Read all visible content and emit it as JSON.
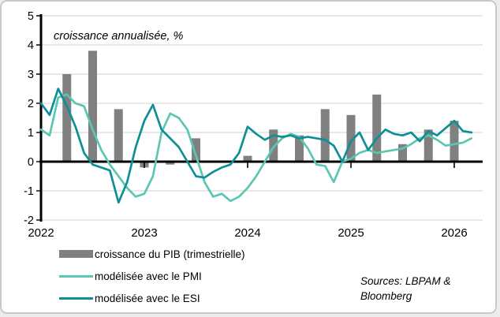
{
  "chart_data": {
    "type": "combo_bar_line",
    "title": "croissance annualisée, %",
    "ylim": [
      -2,
      5
    ],
    "y_ticks": [
      5,
      4,
      3,
      2,
      1,
      0,
      -1,
      -2
    ],
    "x_ticks": [
      "2022",
      "2023",
      "2024",
      "2025",
      "2026"
    ],
    "grid": "horizontal",
    "legend_position": "bottom-left",
    "bar_series": {
      "name": "croissance du PIB (trimestrielle)",
      "color": "#808080",
      "quarters": [
        "2022 T1",
        "2022 T2",
        "2022 T3",
        "2022 T4",
        "2023 T1",
        "2023 T2",
        "2023 T3",
        "2023 T4",
        "2024 T1",
        "2024 T2",
        "2024 T3",
        "2024 T4",
        "2025 T1",
        "2025 T2",
        "2025 T3",
        "2025 T4"
      ],
      "values": [
        3.0,
        3.8,
        1.8,
        -0.2,
        -0.1,
        0.8,
        0.0,
        0.2,
        1.1,
        0.9,
        1.8,
        1.6,
        2.3,
        0.6,
        1.1,
        1.4
      ]
    },
    "line_series": [
      {
        "name": "modélisée avec le PMI",
        "color": "#5BC6B1",
        "frequency": "monthly",
        "start": "2022-01",
        "end": "2026-03",
        "values": [
          1.1,
          0.9,
          2.2,
          2.3,
          2.0,
          1.9,
          1.1,
          0.4,
          -0.1,
          -0.5,
          -0.9,
          -1.2,
          -1.1,
          -0.5,
          1.0,
          1.65,
          1.5,
          1.1,
          0.2,
          -0.7,
          -1.2,
          -1.1,
          -1.35,
          -1.2,
          -0.9,
          -0.5,
          0.0,
          0.5,
          0.8,
          0.95,
          0.85,
          0.45,
          -0.1,
          -0.15,
          -0.7,
          0.0,
          0.1,
          0.3,
          0.4,
          0.3,
          0.35,
          0.4,
          0.45,
          0.6,
          0.8,
          0.9,
          0.75,
          0.55,
          0.6,
          0.65,
          0.8
        ]
      },
      {
        "name": "modélisée avec le ESI",
        "color": "#0E8E96",
        "frequency": "monthly",
        "start": "2022-01",
        "end": "2026-03",
        "values": [
          2.0,
          1.6,
          2.5,
          1.9,
          1.2,
          0.3,
          -0.1,
          -0.2,
          -0.3,
          -1.4,
          -0.7,
          0.5,
          1.4,
          1.95,
          1.1,
          0.8,
          0.5,
          0.0,
          -0.5,
          -0.55,
          -0.35,
          -0.2,
          -0.1,
          0.3,
          1.2,
          0.95,
          0.75,
          0.9,
          0.85,
          0.9,
          0.8,
          0.85,
          0.8,
          0.75,
          0.55,
          0.0,
          0.7,
          1.0,
          0.4,
          0.8,
          1.1,
          0.95,
          0.9,
          1.0,
          0.7,
          1.05,
          0.9,
          1.15,
          1.4,
          1.05,
          1.0
        ]
      }
    ],
    "colors": {
      "gridline": "#D9D9D9",
      "axis": "#000000",
      "background": "#FFFFFF",
      "frame_border": "#C9C9C9"
    }
  },
  "source_note": {
    "line1": "Sources: LBPAM &",
    "line2": "Bloomberg"
  }
}
